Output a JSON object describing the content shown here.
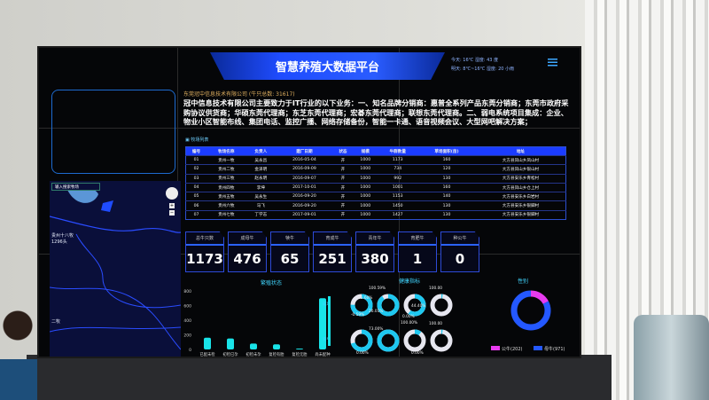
{
  "header": {
    "title": "智慧养殖大数据平台",
    "weather_today": "今天: 16℃  湿度: 43 度",
    "weather_tomorrow": "明天: 8℃~16℃  湿度: 20 小雨",
    "menu_icon": "menu-icon"
  },
  "company": {
    "name_line": "东莞冠中信息技术有限公司 (牛只总数: 31617)",
    "description": "冠中信息技术有限公司主要致力于IT行业的以下业务：一、知名品牌分销商：惠普全系列产品东莞分销商；东莞市政府采购协议供货商；华硕东莞代理商；东芝东莞代理商；宏碁东莞代理商；联想东莞代理商。二、弱电系统项目集成：企业、物业小区智能布线、集团电话、监控广播、网络存储备份，智能一卡通、语音视频会议、大型网吧解决方案；"
  },
  "map": {
    "search_placeholder": "输入搜索牧场",
    "marker_label": "贵州十八牧",
    "marker_count": "1296头",
    "left_label": "二牧"
  },
  "table": {
    "label": "牧场列表",
    "headers": [
      "编号",
      "牧场名称",
      "负责人",
      "建厂日期",
      "状态",
      "规模",
      "牛群数量",
      "草场面积(亩)",
      "地址"
    ],
    "rows": [
      [
        "01",
        "贵州一牧",
        "吴永昌",
        "2016-05-04",
        "开",
        "1000",
        "1173",
        "160",
        "大方县凤山乡凤山村"
      ],
      [
        "02",
        "贵州二牧",
        "金泽明",
        "2016-09-09",
        "开",
        "1000",
        "734",
        "120",
        "大方县凤山乡银山村"
      ],
      [
        "03",
        "贵州三牧",
        "赵永明",
        "2016-09-07",
        "开",
        "1000",
        "992",
        "130",
        "大方县安乐乡青松村"
      ],
      [
        "04",
        "贵州四牧",
        "李坤",
        "2017-10-01",
        "开",
        "1000",
        "1001",
        "160",
        "大方县凤山乡仓上村"
      ],
      [
        "05",
        "贵州五牧",
        "吴永生",
        "2016-09-20",
        "开",
        "1000",
        "1153",
        "140",
        "大方县安乐乡白岩村"
      ],
      [
        "06",
        "贵州六牧",
        "马飞",
        "2016-09-20",
        "开",
        "1000",
        "1450",
        "130",
        "大方县安乐乡银脚村"
      ],
      [
        "07",
        "贵州七牧",
        "丁学志",
        "2017-09-01",
        "开",
        "1000",
        "1427",
        "130",
        "大方县安乐乡银脚村"
      ]
    ]
  },
  "stats": [
    {
      "label": "总牛只数",
      "value": "1173"
    },
    {
      "label": "成母牛",
      "value": "476"
    },
    {
      "label": "犊牛",
      "value": "65"
    },
    {
      "label": "育成牛",
      "value": "251"
    },
    {
      "label": "青年牛",
      "value": "380"
    },
    {
      "label": "育肥牛",
      "value": "1"
    },
    {
      "label": "种公牛",
      "value": "0"
    }
  ],
  "health": {
    "title": "健康指标",
    "row_labels": [
      "成母",
      "育牛"
    ],
    "fractions": [
      [
        0.75,
        0.9,
        0.6,
        0.02
      ],
      [
        0.7,
        1.0,
        0.1,
        0.02
      ]
    ],
    "labels": [
      "100.59%",
      "15.60%",
      "26.01%",
      "-0.59%",
      "44.40%",
      "0.00%",
      "100.00",
      "100.00%",
      "73.00%",
      "0.00%",
      "100.00",
      "0.00%"
    ]
  },
  "chart_data": [
    {
      "type": "bar",
      "title": "繁殖状态",
      "categories": [
        "已配未检",
        "初检已孕",
        "初检未孕",
        "复检有胎",
        "复检无胎",
        "尚未配种"
      ],
      "values": [
        160,
        150,
        80,
        70,
        0,
        700
      ],
      "ylim": [
        0,
        800
      ],
      "yticks": [
        0,
        200,
        400,
        600,
        800
      ],
      "color": "#19e3e8"
    },
    {
      "type": "pie",
      "title": "性别",
      "categories": [
        "公牛(202)",
        "母牛(971)"
      ],
      "values": [
        202,
        971
      ],
      "colors": [
        "#e83bf0",
        "#2458ff"
      ],
      "legend": "bottom"
    }
  ]
}
